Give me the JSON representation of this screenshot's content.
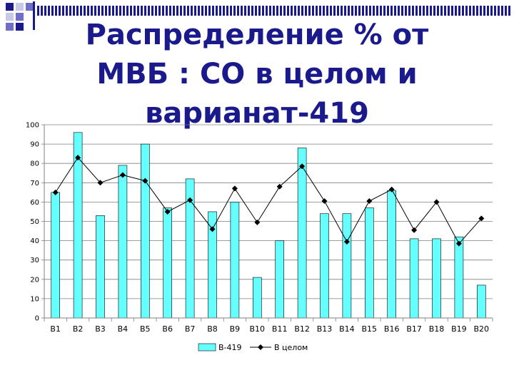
{
  "title_lines": [
    "Распределение % от",
    "МВБ : СО в целом и",
    "варианат-419"
  ],
  "colors": {
    "title": "#1a1a8c",
    "bar_fill": "#66ffff",
    "bar_stroke": "#000000",
    "line": "#000000",
    "grid": "#808080",
    "deco_dark": "#1a1a8c",
    "deco_mid": "#6f6fc8",
    "deco_light": "#c8c8e8"
  },
  "chart_data": {
    "type": "bar",
    "categories": [
      "В1",
      "В2",
      "В3",
      "В4",
      "В5",
      "В6",
      "В7",
      "В8",
      "В9",
      "В10",
      "В11",
      "В12",
      "В13",
      "В14",
      "В15",
      "В16",
      "В17",
      "В18",
      "В19",
      "В20"
    ],
    "series": [
      {
        "name": "В-419",
        "type": "bar",
        "values": [
          65,
          96,
          53,
          79,
          90,
          57,
          72,
          55,
          60,
          21,
          40,
          88,
          54,
          54,
          57,
          66,
          41,
          41,
          42,
          17
        ]
      },
      {
        "name": "В целом",
        "type": "line",
        "marker": "diamond",
        "values": [
          65,
          83,
          70,
          74,
          71,
          55,
          61,
          46,
          67,
          49.5,
          68,
          78.5,
          60.5,
          39.5,
          60.5,
          66.5,
          45.5,
          60,
          38.5,
          51.5
        ]
      }
    ],
    "ylim": [
      0,
      100
    ],
    "yticks": [
      0,
      10,
      20,
      30,
      40,
      50,
      60,
      70,
      80,
      90,
      100
    ],
    "grid": true,
    "legend": "bottom"
  }
}
